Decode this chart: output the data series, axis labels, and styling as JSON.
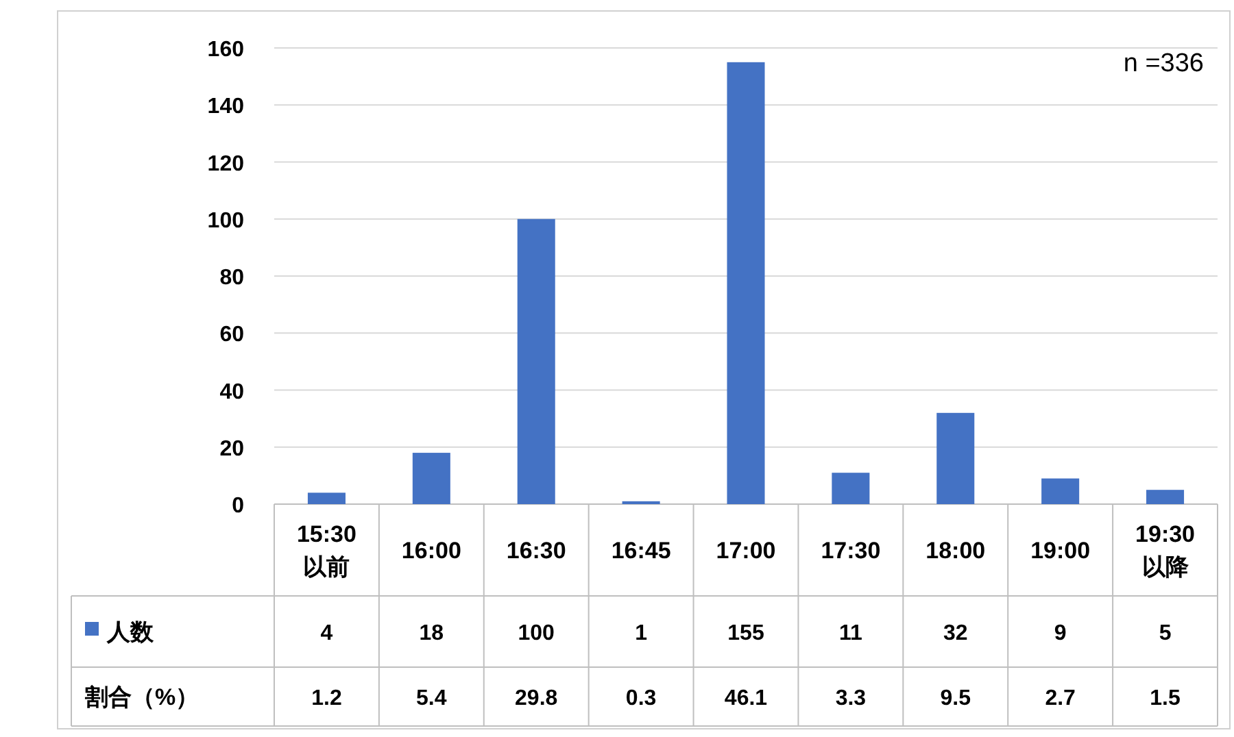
{
  "chart_data": {
    "type": "bar",
    "categories": [
      "15:30\n以前",
      "16:00",
      "16:30",
      "16:45",
      "17:00",
      "17:30",
      "18:00",
      "19:00",
      "19:30\n以降"
    ],
    "series": [
      {
        "name": "人数",
        "color": "#4472c4",
        "values": [
          4,
          18,
          100,
          1,
          155,
          11,
          32,
          9,
          5
        ]
      }
    ],
    "ylim": [
      0,
      160
    ],
    "yticks": [
      0,
      20,
      40,
      60,
      80,
      100,
      120,
      140,
      160
    ],
    "grid": "y",
    "data_labels": true,
    "legend": "bottom",
    "annotations": [
      "n =336",
      "割合（%）",
      "1.2",
      "5.4",
      "29.8",
      "0.3",
      "46.1",
      "3.3",
      "9.5",
      "2.7",
      "1.5"
    ]
  }
}
